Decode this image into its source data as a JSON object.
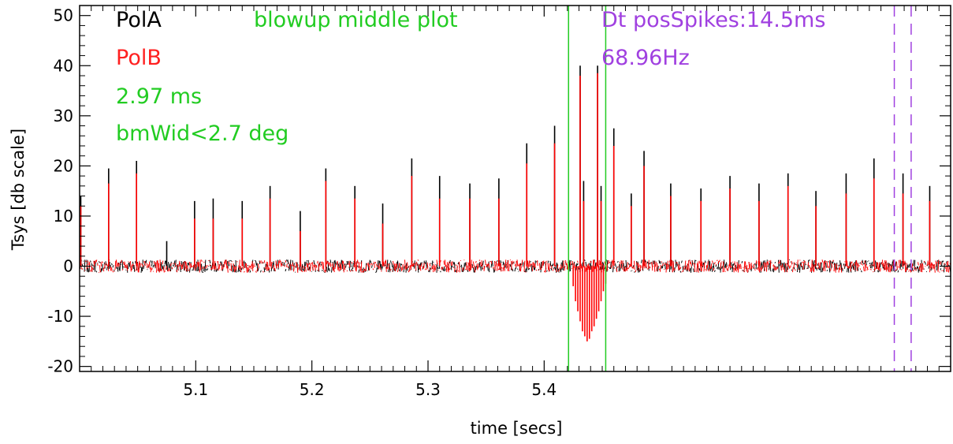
{
  "chart_data": {
    "type": "line",
    "title": "",
    "xlabel": "time [secs]",
    "ylabel": "Tsys [db scale]",
    "xlim": [
      5.0,
      5.5
    ],
    "ylim": [
      -21,
      52
    ],
    "x_ticks": [
      5.1,
      5.2,
      5.3,
      5.4
    ],
    "x_tick_labels": [
      "5.1",
      "5.2",
      "5.3",
      "5.4"
    ],
    "y_ticks": [
      -20,
      -10,
      0,
      10,
      20,
      30,
      40,
      50
    ],
    "y_tick_labels": [
      "-20",
      "-10",
      "0",
      "10",
      "20",
      "30",
      "40",
      "50"
    ],
    "grid": false,
    "noise_level": 1.3,
    "series": [
      {
        "name": "PolA",
        "color": "#000000",
        "spikes": [
          {
            "x": 5.001,
            "y": 14
          },
          {
            "x": 5.025,
            "y": 19.5
          },
          {
            "x": 5.049,
            "y": 21
          },
          {
            "x": 5.075,
            "y": 5
          },
          {
            "x": 5.099,
            "y": 13
          },
          {
            "x": 5.115,
            "y": 13.5
          },
          {
            "x": 5.14,
            "y": 13
          },
          {
            "x": 5.164,
            "y": 16
          },
          {
            "x": 5.19,
            "y": 11
          },
          {
            "x": 5.212,
            "y": 19.5
          },
          {
            "x": 5.237,
            "y": 16
          },
          {
            "x": 5.261,
            "y": 12.5
          },
          {
            "x": 5.286,
            "y": 21.5
          },
          {
            "x": 5.31,
            "y": 18
          },
          {
            "x": 5.336,
            "y": 16.5
          },
          {
            "x": 5.361,
            "y": 17.5
          },
          {
            "x": 5.385,
            "y": 24.5
          },
          {
            "x": 5.409,
            "y": 28
          },
          {
            "x": 5.431,
            "y": 40
          },
          {
            "x": 5.434,
            "y": 17
          },
          {
            "x": 5.446,
            "y": 40
          },
          {
            "x": 5.449,
            "y": 16
          },
          {
            "x": 5.46,
            "y": 27.5
          },
          {
            "x": 5.475,
            "y": 14.5
          },
          {
            "x": 5.486,
            "y": 23
          },
          {
            "x": 5.509,
            "y": 16.5
          },
          {
            "x": 5.535,
            "y": 15.5
          },
          {
            "x": 5.56,
            "y": 18
          },
          {
            "x": 5.585,
            "y": 16.5
          },
          {
            "x": 5.61,
            "y": 18.5
          },
          {
            "x": 5.634,
            "y": 15
          },
          {
            "x": 5.66,
            "y": 18.5
          },
          {
            "x": 5.684,
            "y": 21.5
          },
          {
            "x": 5.709,
            "y": 18.5
          },
          {
            "x": 5.732,
            "y": 16
          }
        ]
      },
      {
        "name": "PolB",
        "color": "#ff0000",
        "spikes": [
          {
            "x": 5.001,
            "y": 12
          },
          {
            "x": 5.025,
            "y": 16.5
          },
          {
            "x": 5.049,
            "y": 18.5
          },
          {
            "x": 5.099,
            "y": 9.5
          },
          {
            "x": 5.115,
            "y": 9.5
          },
          {
            "x": 5.14,
            "y": 9.5
          },
          {
            "x": 5.164,
            "y": 13.5
          },
          {
            "x": 5.19,
            "y": 7
          },
          {
            "x": 5.212,
            "y": 17
          },
          {
            "x": 5.237,
            "y": 13.5
          },
          {
            "x": 5.261,
            "y": 8.5
          },
          {
            "x": 5.286,
            "y": 18
          },
          {
            "x": 5.31,
            "y": 13.5
          },
          {
            "x": 5.336,
            "y": 13.5
          },
          {
            "x": 5.361,
            "y": 13.5
          },
          {
            "x": 5.385,
            "y": 20.5
          },
          {
            "x": 5.409,
            "y": 24.5
          },
          {
            "x": 5.431,
            "y": 38
          },
          {
            "x": 5.434,
            "y": 13
          },
          {
            "x": 5.446,
            "y": 38.5
          },
          {
            "x": 5.449,
            "y": 13
          },
          {
            "x": 5.46,
            "y": 24
          },
          {
            "x": 5.475,
            "y": 12
          },
          {
            "x": 5.486,
            "y": 20
          },
          {
            "x": 5.509,
            "y": 14
          },
          {
            "x": 5.535,
            "y": 13
          },
          {
            "x": 5.56,
            "y": 15.5
          },
          {
            "x": 5.585,
            "y": 13
          },
          {
            "x": 5.61,
            "y": 16
          },
          {
            "x": 5.634,
            "y": 12
          },
          {
            "x": 5.66,
            "y": 14.5
          },
          {
            "x": 5.684,
            "y": 17.5
          },
          {
            "x": 5.709,
            "y": 14.5
          },
          {
            "x": 5.732,
            "y": 13
          }
        ],
        "dips": [
          {
            "x": 5.425,
            "y": -4
          },
          {
            "x": 5.427,
            "y": -7
          },
          {
            "x": 5.429,
            "y": -9
          },
          {
            "x": 5.431,
            "y": -11
          },
          {
            "x": 5.433,
            "y": -13
          },
          {
            "x": 5.435,
            "y": -14
          },
          {
            "x": 5.437,
            "y": -15
          },
          {
            "x": 5.439,
            "y": -14.5
          },
          {
            "x": 5.441,
            "y": -13
          },
          {
            "x": 5.443,
            "y": -12
          },
          {
            "x": 5.445,
            "y": -10.5
          },
          {
            "x": 5.447,
            "y": -9
          },
          {
            "x": 5.449,
            "y": -7
          },
          {
            "x": 5.451,
            "y": -5
          },
          {
            "x": 5.453,
            "y": -3.5
          }
        ]
      }
    ],
    "vertical_lines": [
      {
        "x": 5.421,
        "color": "#22cc22",
        "style": "solid"
      },
      {
        "x": 5.453,
        "color": "#22cc22",
        "style": "solid"
      },
      {
        "x": 5.7015,
        "color": "#a040e0",
        "style": "dashed"
      },
      {
        "x": 5.716,
        "color": "#a040e0",
        "style": "dashed"
      }
    ],
    "annotations": [
      {
        "text": "PolA",
        "color": "#000000"
      },
      {
        "text": "PolB",
        "color": "#ff2020"
      },
      {
        "text": "2.97 ms",
        "color": "#22cc22"
      },
      {
        "text": "bmWid<2.7 deg",
        "color": "#22cc22"
      },
      {
        "text": "blowup middle plot",
        "color": "#22cc22"
      },
      {
        "text": "Dt posSpikes:14.5ms",
        "color": "#a040e0"
      },
      {
        "text": "68.96Hz",
        "color": "#a040e0"
      }
    ]
  }
}
